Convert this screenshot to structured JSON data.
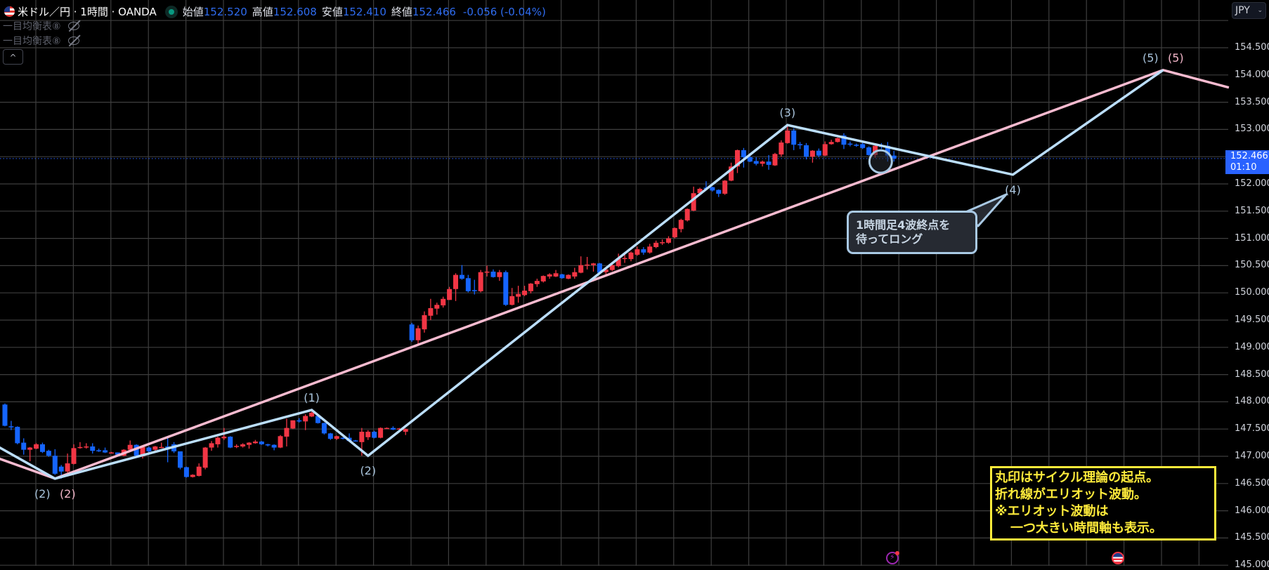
{
  "header": {
    "symbol_title": "米ドル／円 · 1時間 · OANDA",
    "open_label": "始値",
    "open": "152.520",
    "high_label": "高値",
    "high": "152.608",
    "low_label": "安値",
    "low": "152.410",
    "close_label": "終値",
    "close": "152.466",
    "change": "-0.056 (-0.04%)",
    "flag_icon": "us-flag-icon",
    "market_status_icon": "market-open-dot"
  },
  "indicators": [
    {
      "label": "一目均衡表⑧",
      "icon": "eye-off-icon"
    },
    {
      "label": "一目均衡表⑧",
      "icon": "eye-off-icon"
    }
  ],
  "collapse_label": "^",
  "currency_button": {
    "label": "JPY",
    "chevron": "⌄"
  },
  "price_axis": {
    "labels": [
      "154.500",
      "154.000",
      "153.500",
      "153.000",
      "152.000",
      "151.500",
      "151.000",
      "150.500",
      "150.000",
      "149.500",
      "149.000",
      "148.500",
      "148.000",
      "147.500",
      "147.000",
      "146.500",
      "146.000",
      "145.500",
      "145.000"
    ]
  },
  "last_price": {
    "price": "152.466",
    "countdown": "01:10"
  },
  "colors": {
    "up_candle": "#f23645",
    "down_candle": "#1565ff",
    "wave_blue": "#bbdefb",
    "wave_pink": "#f8bbd0",
    "note_yellow": "#ffeb3b",
    "last_price": "#2962ff",
    "grid": "#3e3e3e"
  },
  "chart_data": {
    "type": "candlestick",
    "ylim": [
      145.0,
      155.0
    ],
    "grid": true,
    "candles_ohlc": [
      [
        147.95,
        147.97,
        147.55,
        147.56
      ],
      [
        147.55,
        147.65,
        147.48,
        147.54
      ],
      [
        147.54,
        147.55,
        147.22,
        147.24
      ],
      [
        147.25,
        147.33,
        147.03,
        147.12
      ],
      [
        147.12,
        147.17,
        146.91,
        147.16
      ],
      [
        147.14,
        147.24,
        147.13,
        147.22
      ],
      [
        147.22,
        147.25,
        147.06,
        147.08
      ],
      [
        147.1,
        147.12,
        146.99,
        147.01
      ],
      [
        147.01,
        147.13,
        146.66,
        146.68
      ],
      [
        146.81,
        146.84,
        146.59,
        146.72
      ],
      [
        146.72,
        147.05,
        146.7,
        146.87
      ],
      [
        146.86,
        147.22,
        146.85,
        147.15
      ],
      [
        147.17,
        147.26,
        147.14,
        147.17
      ],
      [
        147.18,
        147.24,
        147.14,
        147.18
      ],
      [
        147.18,
        147.24,
        147.05,
        147.1
      ],
      [
        147.11,
        147.14,
        147.08,
        147.1
      ],
      [
        147.11,
        147.16,
        147.06,
        147.07
      ],
      [
        147.07,
        147.08,
        147.06,
        147.07
      ],
      [
        147.07,
        147.07,
        147.01,
        147.03
      ],
      [
        147.01,
        147.13,
        147.0,
        147.12
      ],
      [
        147.12,
        147.29,
        147.1,
        147.21
      ],
      [
        147.21,
        147.22,
        146.98,
        147.01
      ],
      [
        147.0,
        147.18,
        146.96,
        147.17
      ],
      [
        147.16,
        147.18,
        147.07,
        147.09
      ],
      [
        147.12,
        147.19,
        147.1,
        147.18
      ],
      [
        147.17,
        147.25,
        147.15,
        147.17
      ],
      [
        147.18,
        147.34,
        146.89,
        147.17
      ],
      [
        147.22,
        147.26,
        147.06,
        147.09
      ],
      [
        147.09,
        147.09,
        146.76,
        146.79
      ],
      [
        146.8,
        146.81,
        146.61,
        146.62
      ],
      [
        146.62,
        146.67,
        146.61,
        146.66
      ],
      [
        146.64,
        146.87,
        146.63,
        146.81
      ],
      [
        146.79,
        147.17,
        146.76,
        147.16
      ],
      [
        147.16,
        147.28,
        147.1,
        147.24
      ],
      [
        147.22,
        147.36,
        147.16,
        147.34
      ],
      [
        147.33,
        147.52,
        147.3,
        147.36
      ],
      [
        147.36,
        147.37,
        147.15,
        147.16
      ],
      [
        147.17,
        147.22,
        147.15,
        147.19
      ],
      [
        147.18,
        147.24,
        147.16,
        147.22
      ],
      [
        147.21,
        147.26,
        147.14,
        147.25
      ],
      [
        147.24,
        147.3,
        147.23,
        147.27
      ],
      [
        147.27,
        147.28,
        147.21,
        147.22
      ],
      [
        147.22,
        147.23,
        147.18,
        147.2
      ],
      [
        147.21,
        147.22,
        147.11,
        147.16
      ],
      [
        147.16,
        147.39,
        147.15,
        147.37
      ],
      [
        147.36,
        147.69,
        147.18,
        147.52
      ],
      [
        147.51,
        147.66,
        147.5,
        147.66
      ],
      [
        147.66,
        147.7,
        147.62,
        147.64
      ],
      [
        147.64,
        147.77,
        147.48,
        147.74
      ],
      [
        147.73,
        147.82,
        147.72,
        147.8
      ],
      [
        147.74,
        147.75,
        147.6,
        147.61
      ],
      [
        147.61,
        147.62,
        147.4,
        147.42
      ],
      [
        147.42,
        147.43,
        147.3,
        147.32
      ],
      [
        147.32,
        147.38,
        147.3,
        147.37
      ],
      [
        147.34,
        147.35,
        147.31,
        147.32
      ],
      [
        147.34,
        147.42,
        147.27,
        147.28
      ],
      [
        147.29,
        147.3,
        147.27,
        147.28
      ],
      [
        147.26,
        147.52,
        147.01,
        147.45
      ],
      [
        147.35,
        147.48,
        147.3,
        147.45
      ],
      [
        147.45,
        147.47,
        147.33,
        147.34
      ],
      [
        147.34,
        147.53,
        147.33,
        147.52
      ],
      [
        147.52,
        147.53,
        147.51,
        147.52
      ],
      [
        147.52,
        147.55,
        147.48,
        147.49
      ],
      [
        147.51,
        147.52,
        147.5,
        147.51
      ],
      [
        147.45,
        147.51,
        147.39,
        147.5
      ],
      [
        149.42,
        149.45,
        149.1,
        149.13
      ],
      [
        149.13,
        149.4,
        149.05,
        149.35
      ],
      [
        149.33,
        149.66,
        149.27,
        149.59
      ],
      [
        149.58,
        149.89,
        149.5,
        149.72
      ],
      [
        149.71,
        149.82,
        149.6,
        149.78
      ],
      [
        149.77,
        149.93,
        149.73,
        149.89
      ],
      [
        149.87,
        150.11,
        149.87,
        150.07
      ],
      [
        150.07,
        150.36,
        149.85,
        150.33
      ],
      [
        150.33,
        150.51,
        150.24,
        150.26
      ],
      [
        150.27,
        150.33,
        150.01,
        150.03
      ],
      [
        150.05,
        150.24,
        149.97,
        150.04
      ],
      [
        150.03,
        150.42,
        150.01,
        150.38
      ],
      [
        150.38,
        150.5,
        150.3,
        150.39
      ],
      [
        150.39,
        150.43,
        150.28,
        150.29
      ],
      [
        150.29,
        150.42,
        150.22,
        150.38
      ],
      [
        150.38,
        150.41,
        149.76,
        149.78
      ],
      [
        149.78,
        150.09,
        149.77,
        149.94
      ],
      [
        149.93,
        150.13,
        149.82,
        149.98
      ],
      [
        149.96,
        150.13,
        149.94,
        150.04
      ],
      [
        150.03,
        150.18,
        149.99,
        150.17
      ],
      [
        150.16,
        150.26,
        150.11,
        150.22
      ],
      [
        150.21,
        150.32,
        150.19,
        150.31
      ],
      [
        150.3,
        150.36,
        150.26,
        150.34
      ],
      [
        150.3,
        150.42,
        150.29,
        150.36
      ],
      [
        150.34,
        150.35,
        150.26,
        150.27
      ],
      [
        150.26,
        150.34,
        150.25,
        150.33
      ],
      [
        150.3,
        150.46,
        150.26,
        150.38
      ],
      [
        150.37,
        150.67,
        150.36,
        150.51
      ],
      [
        150.51,
        150.66,
        150.43,
        150.52
      ],
      [
        150.51,
        150.55,
        150.39,
        150.54
      ],
      [
        150.54,
        150.55,
        150.36,
        150.37
      ],
      [
        150.38,
        150.45,
        150.32,
        150.43
      ],
      [
        150.42,
        150.52,
        150.4,
        150.51
      ],
      [
        150.49,
        150.72,
        150.47,
        150.63
      ],
      [
        150.64,
        150.74,
        150.55,
        150.64
      ],
      [
        150.62,
        150.76,
        150.58,
        150.74
      ],
      [
        150.7,
        150.85,
        150.68,
        150.8
      ],
      [
        150.8,
        150.84,
        150.7,
        150.74
      ],
      [
        150.74,
        150.9,
        150.72,
        150.85
      ],
      [
        150.84,
        150.96,
        150.82,
        150.92
      ],
      [
        150.92,
        150.98,
        150.88,
        150.93
      ],
      [
        150.92,
        151.04,
        150.9,
        151.0
      ],
      [
        151.02,
        151.2,
        151.0,
        151.19
      ],
      [
        151.17,
        151.36,
        151.11,
        151.34
      ],
      [
        151.33,
        151.55,
        151.31,
        151.54
      ],
      [
        151.51,
        151.95,
        151.5,
        151.83
      ],
      [
        151.83,
        151.93,
        151.8,
        151.91
      ],
      [
        151.93,
        152.05,
        151.88,
        151.92
      ],
      [
        151.94,
        151.95,
        151.86,
        151.88
      ],
      [
        151.89,
        151.9,
        151.76,
        151.82
      ],
      [
        151.82,
        152.07,
        151.8,
        152.06
      ],
      [
        152.06,
        152.39,
        152.05,
        152.32
      ],
      [
        152.32,
        152.63,
        152.2,
        152.62
      ],
      [
        152.62,
        152.66,
        152.3,
        152.49
      ],
      [
        152.49,
        152.52,
        152.4,
        152.41
      ],
      [
        152.42,
        152.49,
        152.34,
        152.37
      ],
      [
        152.37,
        152.43,
        152.32,
        152.41
      ],
      [
        152.41,
        152.53,
        152.26,
        152.35
      ],
      [
        152.34,
        152.57,
        152.33,
        152.55
      ],
      [
        152.54,
        152.8,
        152.5,
        152.76
      ],
      [
        152.75,
        153.08,
        152.74,
        152.98
      ],
      [
        152.98,
        153.02,
        152.62,
        152.72
      ],
      [
        152.73,
        152.77,
        152.64,
        152.71
      ],
      [
        152.71,
        152.75,
        152.45,
        152.5
      ],
      [
        152.5,
        152.62,
        152.39,
        152.61
      ],
      [
        152.61,
        152.65,
        152.49,
        152.52
      ],
      [
        152.52,
        152.78,
        152.51,
        152.73
      ],
      [
        152.73,
        152.81,
        152.72,
        152.77
      ],
      [
        152.77,
        152.85,
        152.76,
        152.84
      ],
      [
        152.89,
        152.93,
        152.64,
        152.72
      ],
      [
        152.74,
        152.78,
        152.69,
        152.73
      ],
      [
        152.72,
        152.74,
        152.68,
        152.7
      ],
      [
        152.73,
        152.76,
        152.64,
        152.66
      ],
      [
        152.67,
        152.69,
        152.52,
        152.53
      ],
      [
        152.53,
        152.72,
        152.48,
        152.7
      ],
      [
        152.7,
        152.75,
        152.64,
        152.68
      ],
      [
        152.7,
        152.77,
        152.41,
        152.52
      ],
      [
        152.52,
        152.608,
        152.41,
        152.466
      ]
    ],
    "price_gap_after_bar": 64,
    "elliott_waves": [
      {
        "color": "blue",
        "points": [
          {
            "bar": -1,
            "price": 147.17
          },
          {
            "bar": 8,
            "price": 146.59,
            "label": "(2)"
          },
          {
            "bar": 49,
            "price": 147.85,
            "label": "(1)"
          },
          {
            "bar": 58,
            "price": 147.01,
            "label": "(2)"
          },
          {
            "bar": 125,
            "price": 153.08,
            "label": "(3)"
          },
          {
            "bar": 161,
            "price": 152.17,
            "label": "(4)"
          },
          {
            "bar": 185,
            "price": 154.09,
            "label": "(5)"
          }
        ]
      },
      {
        "color": "pink",
        "points": [
          {
            "bar": -1,
            "price": 146.96
          },
          {
            "bar": 8,
            "price": 146.59,
            "label": "(2)"
          },
          {
            "bar": 185,
            "price": 154.09,
            "label": "(5)"
          },
          {
            "bar": 195.5,
            "price": 153.77
          }
        ]
      }
    ],
    "cycle_circle": {
      "bar": 141,
      "price": 152.41
    }
  },
  "callout": {
    "line1": "1時間足4波終点を",
    "line2": "待ってロング"
  },
  "note": {
    "line1": "丸印はサイクル理論の起点。",
    "line2": "折れ線がエリオット波動。",
    "line3": "※エリオット波動は",
    "line4": "一つ大きい時間軸も表示。"
  },
  "events": [
    {
      "icon": "lightning-event-icon"
    },
    {
      "icon": "us-economic-event-icon"
    }
  ]
}
